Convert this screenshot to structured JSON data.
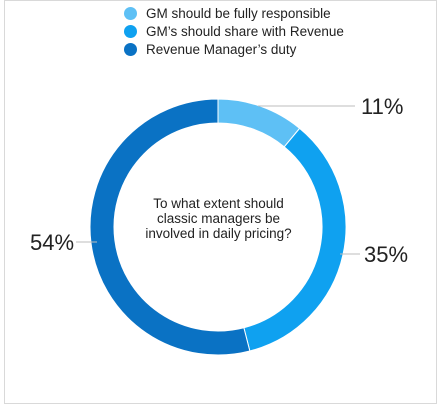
{
  "chart_data": {
    "type": "pie",
    "variant": "donut",
    "center_text": "To what extent should classic managers be involved in  daily pricing?",
    "categories": [
      "GM should be fully responsible",
      "GM’s should share with Revenue",
      "Revenue Manager’s duty"
    ],
    "values": [
      11,
      35,
      54
    ],
    "value_labels": [
      "11%",
      "35%",
      "54%"
    ],
    "colors": [
      "#5ec0f5",
      "#0fa1f0",
      "#0a72c4"
    ],
    "legend_position": "top"
  }
}
